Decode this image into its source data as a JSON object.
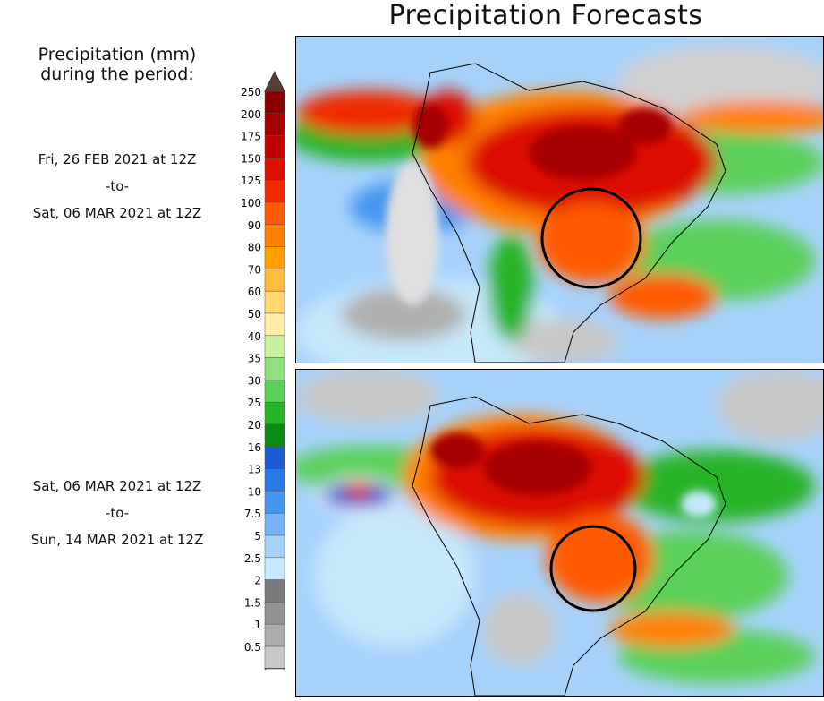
{
  "title": "Precipitation Forecasts",
  "colorbar": {
    "title_line1": "Precipitation (mm)",
    "title_line2": "during the period:",
    "units": "mm",
    "levels": [
      "250",
      "200",
      "175",
      "150",
      "125",
      "100",
      "90",
      "80",
      "70",
      "60",
      "50",
      "40",
      "35",
      "30",
      "25",
      "20",
      "16",
      "13",
      "10",
      "7.5",
      "5",
      "2.5",
      "2",
      "1.5",
      "1",
      "0.5"
    ],
    "colors": [
      "#8a0000",
      "#a50000",
      "#c30000",
      "#dc0f00",
      "#f02b00",
      "#ff5a00",
      "#ff8000",
      "#ffa000",
      "#ffbd40",
      "#ffd970",
      "#ffeea8",
      "#c8f0a0",
      "#90e080",
      "#5ad05a",
      "#28b428",
      "#0a8c14",
      "#1e5ad2",
      "#2878e6",
      "#4696f0",
      "#78b4f5",
      "#a6d2fa",
      "#c6e8fc",
      "#7a7a7a",
      "#939393",
      "#adadad",
      "#c8c8c8"
    ],
    "top_arrow_color": "#5a3c32"
  },
  "panels": [
    {
      "name": "forecast-week-1",
      "period_start": "Fri, 26 FEB 2021 at 12Z",
      "period_sep": "-to-",
      "period_end": "Sat, 06 MAR 2021 at 12Z"
    },
    {
      "name": "forecast-week-2",
      "period_start": "Sat, 06 MAR 2021 at 12Z",
      "period_sep": "-to-",
      "period_end": "Sun, 14 MAR 2021 at 12Z"
    }
  ]
}
